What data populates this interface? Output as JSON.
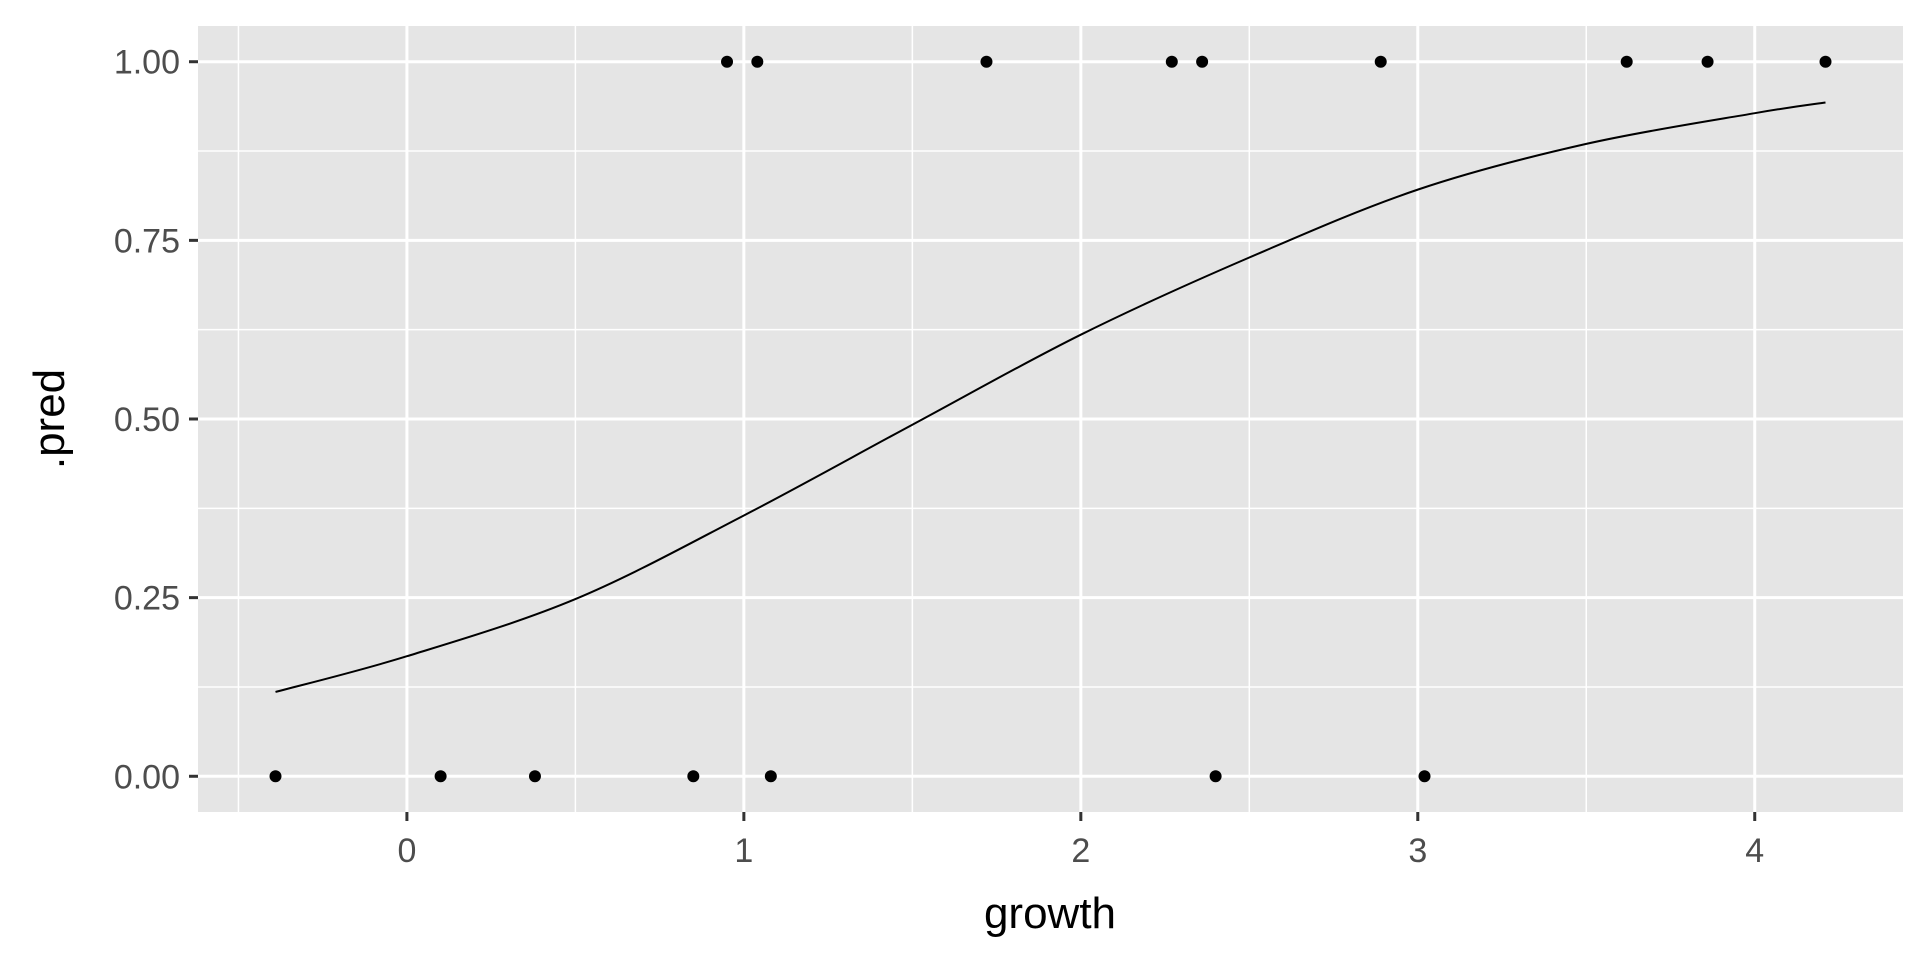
{
  "chart_data": {
    "type": "scatter",
    "xlabel": "growth",
    "ylabel": ".pred",
    "xlim": [
      -0.62,
      4.44
    ],
    "ylim": [
      -0.05,
      1.05
    ],
    "x_ticks": [
      0,
      1,
      2,
      3,
      4
    ],
    "x_tick_labels": [
      "0",
      "1",
      "2",
      "3",
      "4"
    ],
    "y_ticks": [
      0,
      0.25,
      0.5,
      0.75,
      1
    ],
    "y_tick_labels": [
      "0.00",
      "0.25",
      "0.50",
      "0.75",
      "1.00"
    ],
    "grid": true,
    "colors": {
      "panel": "#e5e5e5",
      "grid": "#ffffff",
      "points": "#000000",
      "curve": "#000000",
      "tick_text": "#4d4d4d"
    },
    "series": [
      {
        "type": "scatter",
        "points": [
          {
            "x": -0.39,
            "y": 0
          },
          {
            "x": 0.1,
            "y": 0
          },
          {
            "x": 0.38,
            "y": 0
          },
          {
            "x": 0.85,
            "y": 0
          },
          {
            "x": 1.08,
            "y": 0
          },
          {
            "x": 2.4,
            "y": 0
          },
          {
            "x": 3.02,
            "y": 0
          },
          {
            "x": 0.95,
            "y": 1
          },
          {
            "x": 1.04,
            "y": 1
          },
          {
            "x": 1.72,
            "y": 1
          },
          {
            "x": 2.27,
            "y": 1
          },
          {
            "x": 2.36,
            "y": 1
          },
          {
            "x": 2.89,
            "y": 1
          },
          {
            "x": 3.62,
            "y": 1
          },
          {
            "x": 3.86,
            "y": 1
          },
          {
            "x": 4.21,
            "y": 1
          }
        ]
      },
      {
        "type": "line",
        "points": [
          {
            "x": -0.39,
            "y": 0.118
          },
          {
            "x": 0.0,
            "y": 0.168
          },
          {
            "x": 0.5,
            "y": 0.248
          },
          {
            "x": 1.0,
            "y": 0.365
          },
          {
            "x": 1.5,
            "y": 0.492
          },
          {
            "x": 2.0,
            "y": 0.618
          },
          {
            "x": 2.5,
            "y": 0.726
          },
          {
            "x": 3.0,
            "y": 0.821
          },
          {
            "x": 3.5,
            "y": 0.885
          },
          {
            "x": 4.0,
            "y": 0.928
          },
          {
            "x": 4.21,
            "y": 0.943
          }
        ]
      }
    ]
  }
}
